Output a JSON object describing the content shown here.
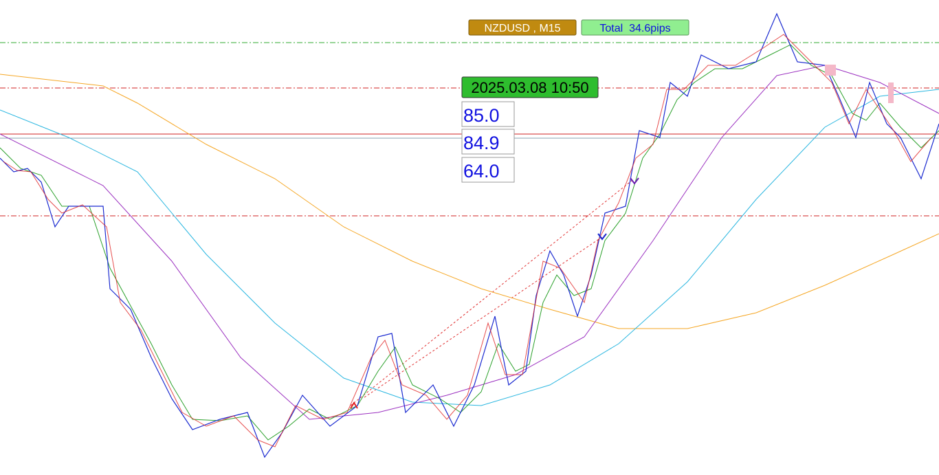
{
  "header": {
    "symbol": "NZDUSD , M15",
    "total": "Total  34.6pips"
  },
  "info": {
    "time": "2025.03.08 10:50",
    "values": [
      "85.0",
      "84.9",
      "64.0"
    ]
  }
}
